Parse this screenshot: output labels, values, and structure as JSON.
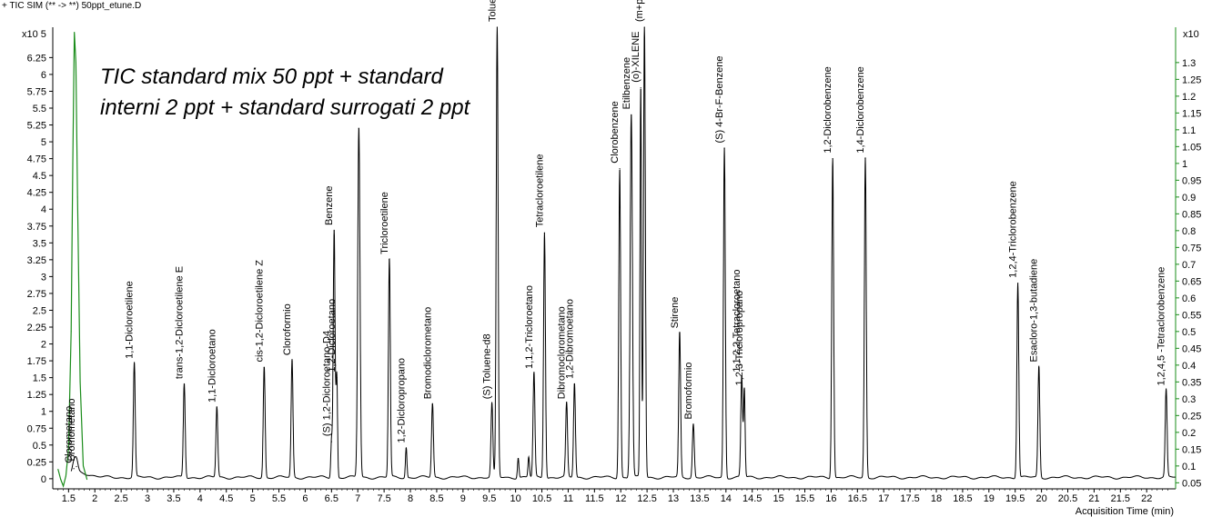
{
  "header": {
    "title": "+ TIC SIM (** -> **) 50ppt_etune.D"
  },
  "annotation": {
    "line1": "TIC standard mix 50 ppt + standard",
    "line2": "interni 2 ppt + standard surrogati 2 ppt"
  },
  "chart_data": {
    "type": "line",
    "title": "+ TIC SIM (** -> **) 50ppt_etune.D",
    "xlabel": "Acquisition Time (min)",
    "ylabel": "",
    "ylabel_multiplier": "x10 5",
    "y2label_multiplier": "x10",
    "xlim": [
      1.2,
      22.55
    ],
    "ylim": [
      -0.15,
      6.7
    ],
    "y2lim": [
      0.032,
      1.405
    ],
    "grid": false,
    "legend": "none",
    "x_ticks": [
      "1.5",
      "2",
      "2.5",
      "3",
      "3.5",
      "4",
      "4.5",
      "5",
      "5.5",
      "6",
      "6.5",
      "7",
      "7.5",
      "8",
      "8.5",
      "9",
      "9.5",
      "10",
      "10.5",
      "11",
      "11.5",
      "12",
      "12.5",
      "13",
      "13.5",
      "14",
      "14.5",
      "15",
      "15.5",
      "16",
      "16.5",
      "17",
      "17.5",
      "18",
      "18.5",
      "19",
      "19.5",
      "20",
      "20.5",
      "21",
      "21.5",
      "22"
    ],
    "y_ticks": [
      "0",
      "0.25",
      "0.5",
      "0.75",
      "1",
      "1.25",
      "1.5",
      "1.75",
      "2",
      "2.25",
      "2.5",
      "2.75",
      "3",
      "3.25",
      "3.5",
      "3.75",
      "4",
      "4.25",
      "4.5",
      "4.75",
      "5",
      "5.25",
      "5.5",
      "5.75",
      "6",
      "6.25"
    ],
    "y2_ticks": [
      "0.05",
      "0.1",
      "0.15",
      "0.2",
      "0.25",
      "0.3",
      "0.35",
      "0.4",
      "0.45",
      "0.5",
      "0.55",
      "0.6",
      "0.65",
      "0.7",
      "0.75",
      "0.8",
      "0.85",
      "0.9",
      "0.95",
      "1",
      "1.05",
      "1.1",
      "1.15",
      "1.2",
      "1.25",
      "1.3"
    ],
    "baseline": 0.05,
    "series": [
      {
        "color": "#000000",
        "axis": "left",
        "peaks": [
          {
            "label": "Clorometano",
            "x": 1.6,
            "y": 0.15,
            "w": 0.04
          },
          {
            "label": "Bromometano",
            "x": 1.65,
            "y": 0.18,
            "w": 0.04
          },
          {
            "label": "1,1-Dicloroetilene",
            "x": 2.75,
            "y": 1.7,
            "w": 0.025
          },
          {
            "label": "trans-1,2-Dicloroetilene E",
            "x": 3.7,
            "y": 1.4,
            "w": 0.025
          },
          {
            "label": "1,1-Dicloroetano",
            "x": 4.32,
            "y": 1.05,
            "w": 0.025
          },
          {
            "label": "cis-1,2-Dicloroetilene Z",
            "x": 5.22,
            "y": 1.65,
            "w": 0.025
          },
          {
            "label": "Cloroformio",
            "x": 5.75,
            "y": 1.75,
            "w": 0.025
          },
          {
            "label": "(S) 1,2-Dicloroetano-D4",
            "x": 6.5,
            "y": 0.55,
            "w": 0.02
          },
          {
            "label": "Benzene",
            "x": 6.55,
            "y": 3.68,
            "w": 0.025
          },
          {
            "label": "1,2-Dicloroetano",
            "x": 6.6,
            "y": 1.5,
            "w": 0.02
          },
          {
            "label": "",
            "x": 7.02,
            "y": 5.2,
            "w": 0.03
          },
          {
            "label": "Tricloroetilene",
            "x": 7.6,
            "y": 3.25,
            "w": 0.025
          },
          {
            "label": "1,2-Dicloropropano",
            "x": 7.92,
            "y": 0.45,
            "w": 0.02
          },
          {
            "label": "Bromodiclorometano",
            "x": 8.42,
            "y": 1.1,
            "w": 0.025
          },
          {
            "label": "(S) Toluene-d8",
            "x": 9.55,
            "y": 1.1,
            "w": 0.025
          },
          {
            "label": "",
            "x": 10.05,
            "y": 0.3,
            "w": 0.02
          },
          {
            "label": "",
            "x": 10.25,
            "y": 0.3,
            "w": 0.02
          },
          {
            "label": "Toluene",
            "x": 9.65,
            "y": 6.7,
            "w": 0.025
          },
          {
            "label": "1,1,2-Tricloroetano",
            "x": 10.35,
            "y": 1.55,
            "w": 0.025
          },
          {
            "label": "Tetracloroetilene",
            "x": 10.55,
            "y": 3.65,
            "w": 0.025
          },
          {
            "label": "Dibromoclorometano",
            "x": 10.97,
            "y": 1.1,
            "w": 0.025
          },
          {
            "label": "1,2-Dibromoetano",
            "x": 11.12,
            "y": 1.4,
            "w": 0.025
          },
          {
            "label": "Clorobenzene",
            "x": 11.98,
            "y": 4.6,
            "w": 0.025
          },
          {
            "label": "Etilbenzene",
            "x": 12.2,
            "y": 5.4,
            "w": 0.03
          },
          {
            "label": "(m+p)-XILENI",
            "x": 12.45,
            "y": 6.7,
            "w": 0.025
          },
          {
            "label": "(o)-XILENE",
            "x": 12.38,
            "y": 5.8,
            "w": 0.02
          },
          {
            "label": "Stirene",
            "x": 13.12,
            "y": 2.15,
            "w": 0.025
          },
          {
            "label": "Bromoformio",
            "x": 13.38,
            "y": 0.8,
            "w": 0.025
          },
          {
            "label": "(S) 4-Br-F-Benzene",
            "x": 13.97,
            "y": 4.9,
            "w": 0.025
          },
          {
            "label": "1,1,2,2-Tetracloroetano",
            "x": 14.3,
            "y": 1.5,
            "w": 0.025
          },
          {
            "label": "1,2,3-Tricloropropano",
            "x": 14.35,
            "y": 1.3,
            "w": 0.02
          },
          {
            "label": "1,2-Diclorobenzene",
            "x": 16.03,
            "y": 4.75,
            "w": 0.025
          },
          {
            "label": "1,4-Diclorobenzene",
            "x": 16.65,
            "y": 4.75,
            "w": 0.025
          },
          {
            "label": "1,2,4-Triclorobenzene",
            "x": 19.55,
            "y": 2.9,
            "w": 0.025
          },
          {
            "label": "Esacloro-1,3-butadiene",
            "x": 19.95,
            "y": 1.65,
            "w": 0.025
          },
          {
            "label": "1,2,4,5 -Tetraclorobenzene",
            "x": 22.37,
            "y": 1.3,
            "w": 0.025
          }
        ]
      },
      {
        "color": "#1a8c1a",
        "axis": "right",
        "x": [
          1.3,
          1.35,
          1.4,
          1.45,
          1.5,
          1.55,
          1.58,
          1.61,
          1.64,
          1.67,
          1.72,
          1.78,
          1.85
        ],
        "y": [
          0.09,
          0.06,
          0.04,
          0.07,
          0.15,
          0.5,
          1.0,
          1.39,
          1.3,
          0.9,
          0.35,
          0.1,
          0.06
        ]
      }
    ]
  }
}
